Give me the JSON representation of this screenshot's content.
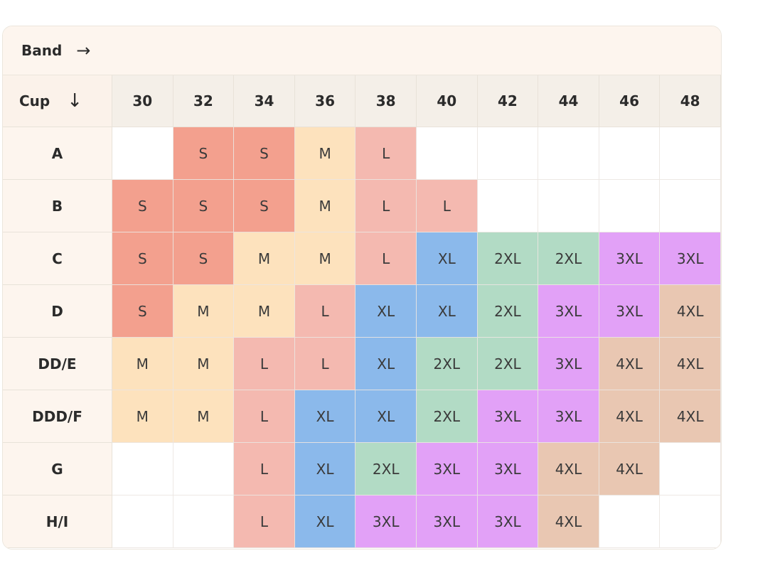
{
  "header": {
    "band_label": "Band",
    "band_arrow": "→",
    "cup_label": "Cup",
    "cup_arrow": "↓"
  },
  "bands": [
    "30",
    "32",
    "34",
    "36",
    "38",
    "40",
    "42",
    "44",
    "46",
    "48"
  ],
  "cups": [
    "A",
    "B",
    "C",
    "D",
    "DD/E",
    "DDD/F",
    "G",
    "H/I"
  ],
  "sizes": [
    [
      "",
      "S",
      "S",
      "M",
      "L",
      "",
      "",
      "",
      "",
      ""
    ],
    [
      "S",
      "S",
      "S",
      "M",
      "L",
      "L",
      "",
      "",
      "",
      ""
    ],
    [
      "S",
      "S",
      "M",
      "M",
      "L",
      "XL",
      "2XL",
      "2XL",
      "3XL",
      "3XL"
    ],
    [
      "S",
      "M",
      "M",
      "L",
      "XL",
      "XL",
      "2XL",
      "3XL",
      "3XL",
      "4XL"
    ],
    [
      "M",
      "M",
      "L",
      "L",
      "XL",
      "2XL",
      "2XL",
      "3XL",
      "4XL",
      "4XL"
    ],
    [
      "M",
      "M",
      "L",
      "XL",
      "XL",
      "2XL",
      "3XL",
      "3XL",
      "4XL",
      "4XL"
    ],
    [
      "",
      "",
      "L",
      "XL",
      "2XL",
      "3XL",
      "3XL",
      "4XL",
      "4XL",
      ""
    ],
    [
      "",
      "",
      "L",
      "XL",
      "3XL",
      "3XL",
      "3XL",
      "4XL",
      "",
      ""
    ]
  ],
  "size_colors": {
    "S": "#f3a08e",
    "M": "#fde2bd",
    "L": "#f4b9b0",
    "XL": "#8bb9eb",
    "2XL": "#b2dbc5",
    "3XL": "#e2a1f7",
    "4XL": "#e9c7b2",
    "": "#ffffff"
  }
}
